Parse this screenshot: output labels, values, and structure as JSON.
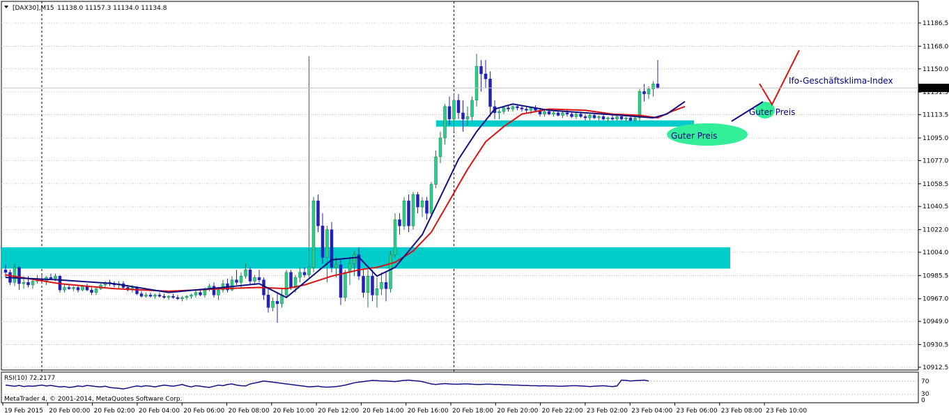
{
  "header": {
    "symbol": "[DAX30],M15",
    "ohlc": "11138.0 11157.3 11134.0 11134.8",
    "dropdown_icon": "triangle-down-icon"
  },
  "current_price": "11134.8",
  "rsi_panel": {
    "label": "RSI(10) 72.2177",
    "levels": [
      "70",
      "30",
      "0"
    ]
  },
  "footer": {
    "copyright": "MetaTrader 4, © 2001-2014, MetaQuotes Software Corp."
  },
  "annotations": {
    "ifo": "Ifo-Geschäftsklima-Index",
    "guter_preis_1": "Guter Preis",
    "guter_preis_2": "Guter Preis"
  },
  "colors": {
    "bull": "#2ecc8a",
    "bear": "#2222bb",
    "ma_fast": "#101080",
    "ma_slow": "#dd1010",
    "zone": "#00cccc",
    "highlight": "#33ee99",
    "rsi": "#101080",
    "arrow": "#dd1010"
  },
  "chart_data": {
    "type": "candlestick",
    "symbol": "DAX30",
    "timeframe": "M15",
    "y_ticks": [
      11186.5,
      11168.0,
      11150.0,
      11131.5,
      11113.5,
      11095.0,
      11077.0,
      11058.5,
      11040.5,
      11022.0,
      11004.0,
      10985.5,
      10967.0,
      10949.0,
      10930.5,
      10912.5
    ],
    "y_tick_labels": [
      "11186.5",
      "11168.0",
      "11150.0",
      "11131.5",
      "11113.5",
      "11095.0",
      "11077.0",
      "11058.5",
      "11040.5",
      "11022.0",
      "11004.0",
      "10985.5",
      "10967.0",
      "10949.0",
      "10930.5",
      "10912.5"
    ],
    "ylim": [
      10910,
      11204
    ],
    "x_labels": [
      "19 Feb 2015",
      "20 Feb 00:00",
      "20 Feb 02:00",
      "20 Feb 04:00",
      "20 Feb 06:00",
      "20 Feb 08:00",
      "20 Feb 10:00",
      "20 Feb 12:00",
      "20 Feb 14:00",
      "20 Feb 16:00",
      "20 Feb 18:00",
      "20 Feb 20:00",
      "20 Feb 22:00",
      "23 Feb 02:00",
      "23 Feb 04:00",
      "23 Feb 06:00",
      "23 Feb 08:00",
      "23 Feb 10:00"
    ],
    "day_separator_bars": [
      8,
      99
    ],
    "zones": [
      {
        "low": 10991,
        "high": 11008,
        "from_bar": 0,
        "to_bar": 160
      },
      {
        "low": 11104,
        "high": 11109,
        "from_bar": 96,
        "to_bar": 152
      }
    ],
    "candles": [
      [
        10990,
        10994,
        10984,
        10988
      ],
      [
        10988,
        10990,
        10978,
        10980
      ],
      [
        10980,
        10995,
        10977,
        10992
      ],
      [
        10992,
        10993,
        10974,
        10979
      ],
      [
        10979,
        10985,
        10975,
        10980
      ],
      [
        10980,
        10985,
        10976,
        10978
      ],
      [
        10978,
        10983,
        10975,
        10981
      ],
      [
        10981,
        10986,
        10979,
        10983
      ],
      [
        10983,
        10986,
        10980,
        10981
      ],
      [
        10981,
        10985,
        10978,
        10984
      ],
      [
        10984,
        10987,
        10982,
        10983
      ],
      [
        10983,
        10987,
        10981,
        10985
      ],
      [
        10985,
        10986,
        10972,
        10974
      ],
      [
        10974,
        10978,
        10972,
        10976
      ],
      [
        10976,
        10978,
        10974,
        10975
      ],
      [
        10975,
        10977,
        10973,
        10976
      ],
      [
        10976,
        10978,
        10972,
        10974
      ],
      [
        10974,
        10978,
        10973,
        10977
      ],
      [
        10977,
        10979,
        10973,
        10974
      ],
      [
        10974,
        10976,
        10970,
        10972
      ],
      [
        10972,
        10976,
        10970,
        10975
      ],
      [
        10975,
        10979,
        10974,
        10978
      ],
      [
        10978,
        10981,
        10976,
        10980
      ],
      [
        10980,
        10982,
        10977,
        10979
      ],
      [
        10979,
        10981,
        10976,
        10978
      ],
      [
        10978,
        10981,
        10975,
        10979
      ],
      [
        10979,
        10981,
        10975,
        10976
      ],
      [
        10976,
        10978,
        10973,
        10974
      ],
      [
        10974,
        10978,
        10972,
        10976
      ],
      [
        10976,
        10977,
        10970,
        10971
      ],
      [
        10971,
        10973,
        10968,
        10969
      ],
      [
        10969,
        10972,
        10968,
        10970
      ],
      [
        10970,
        10972,
        10968,
        10969
      ],
      [
        10969,
        10971,
        10967,
        10970
      ],
      [
        10970,
        10972,
        10968,
        10969
      ],
      [
        10969,
        10971,
        10967,
        10968
      ],
      [
        10968,
        10970,
        10966,
        10969
      ],
      [
        10969,
        10971,
        10967,
        10968
      ],
      [
        10968,
        10970,
        10966,
        10967
      ],
      [
        10967,
        10969,
        10965,
        10968
      ],
      [
        10968,
        10970,
        10966,
        10969
      ],
      [
        10969,
        10971,
        10967,
        10970
      ],
      [
        10970,
        10974,
        10968,
        10972
      ],
      [
        10972,
        10975,
        10969,
        10970
      ],
      [
        10970,
        10976,
        10968,
        10975
      ],
      [
        10975,
        10979,
        10973,
        10977
      ],
      [
        10977,
        10980,
        10968,
        10970
      ],
      [
        10970,
        10976,
        10966,
        10974
      ],
      [
        10974,
        10982,
        10972,
        10979
      ],
      [
        10979,
        10983,
        10972,
        10974
      ],
      [
        10974,
        10985,
        10973,
        10982
      ],
      [
        10982,
        10990,
        10978,
        10980
      ],
      [
        10980,
        10988,
        10976,
        10985
      ],
      [
        10985,
        10995,
        10983,
        10990
      ],
      [
        10990,
        10992,
        10978,
        10981
      ],
      [
        10981,
        10986,
        10978,
        10984
      ],
      [
        10984,
        10990,
        10980,
        10982
      ],
      [
        10982,
        10984,
        10966,
        10970
      ],
      [
        10970,
        10975,
        10956,
        10960
      ],
      [
        10960,
        10968,
        10957,
        10965
      ],
      [
        10965,
        10972,
        10948,
        10963
      ],
      [
        10963,
        10975,
        10960,
        10970
      ],
      [
        10970,
        10990,
        10968,
        10988
      ],
      [
        10988,
        10990,
        10974,
        10976
      ],
      [
        10976,
        10986,
        10972,
        10984
      ],
      [
        10984,
        10992,
        10980,
        10988
      ],
      [
        10988,
        10992,
        10984,
        10986
      ],
      [
        10986,
        11160,
        10984,
        10992
      ],
      [
        10992,
        11048,
        10988,
        11045
      ],
      [
        11045,
        11050,
        11020,
        11025
      ],
      [
        11025,
        11035,
        10995,
        11000
      ],
      [
        11000,
        11025,
        10980,
        11022
      ],
      [
        11022,
        11028,
        10988,
        10992
      ],
      [
        10992,
        11000,
        10984,
        10994
      ],
      [
        10994,
        10998,
        10962,
        10968
      ],
      [
        10968,
        10990,
        10965,
        10988
      ],
      [
        10988,
        11000,
        10978,
        10995
      ],
      [
        10995,
        11005,
        10985,
        11002
      ],
      [
        11002,
        11008,
        10982,
        10985
      ],
      [
        10985,
        10990,
        10968,
        10972
      ],
      [
        10972,
        10990,
        10960,
        10985
      ],
      [
        10985,
        10990,
        10965,
        10970
      ],
      [
        10970,
        10984,
        10960,
        10975
      ],
      [
        10975,
        10988,
        10970,
        10980
      ],
      [
        10980,
        10988,
        10965,
        10975
      ],
      [
        10975,
        11005,
        10972,
        11002
      ],
      [
        11002,
        11035,
        11000,
        11030
      ],
      [
        11030,
        11035,
        11018,
        11025
      ],
      [
        11025,
        11048,
        11022,
        11045
      ],
      [
        11045,
        11050,
        11020,
        11025
      ],
      [
        11025,
        11052,
        11022,
        11050
      ],
      [
        11050,
        11052,
        11035,
        11040
      ],
      [
        11040,
        11048,
        11032,
        11045
      ],
      [
        11045,
        11048,
        11030,
        11035
      ],
      [
        11035,
        11060,
        11032,
        11058
      ],
      [
        11058,
        11085,
        11055,
        11080
      ],
      [
        11080,
        11100,
        11075,
        11095
      ],
      [
        11095,
        11122,
        11090,
        11120
      ],
      [
        11120,
        11128,
        11105,
        11110
      ],
      [
        11110,
        11130,
        11100,
        11125
      ],
      [
        11125,
        11130,
        11110,
        11115
      ],
      [
        11115,
        11125,
        11100,
        11110
      ],
      [
        11110,
        11120,
        11105,
        11112
      ],
      [
        11112,
        11128,
        11108,
        11125
      ],
      [
        11125,
        11162,
        11120,
        11152
      ],
      [
        11152,
        11157,
        11132,
        11146
      ],
      [
        11146,
        11157,
        11135,
        11142
      ],
      [
        11142,
        11148,
        11112,
        11120
      ],
      [
        11120,
        11125,
        11110,
        11115
      ],
      [
        11115,
        11118,
        11110,
        11116
      ],
      [
        11116,
        11120,
        11114,
        11119
      ],
      [
        11119,
        11121,
        11116,
        11118
      ],
      [
        11118,
        11121,
        11116,
        11120
      ],
      [
        11120,
        11122,
        11117,
        11119
      ],
      [
        11119,
        11121,
        11116,
        11118
      ],
      [
        11118,
        11120,
        11115,
        11117
      ],
      [
        11117,
        11120,
        11114,
        11119
      ],
      [
        11119,
        11121,
        11116,
        11117
      ],
      [
        11117,
        11119,
        11112,
        11114
      ],
      [
        11114,
        11117,
        11112,
        11116
      ],
      [
        11116,
        11118,
        11113,
        11114
      ],
      [
        11114,
        11117,
        11112,
        11115
      ],
      [
        11115,
        11117,
        11112,
        11113
      ],
      [
        11113,
        11116,
        11111,
        11115
      ],
      [
        11115,
        11117,
        11112,
        11114
      ],
      [
        11114,
        11116,
        11111,
        11112
      ],
      [
        11112,
        11115,
        11110,
        11114
      ],
      [
        11114,
        11116,
        11111,
        11112
      ],
      [
        11112,
        11114,
        11109,
        11111
      ],
      [
        11111,
        11114,
        11109,
        11113
      ],
      [
        11113,
        11115,
        11110,
        11111
      ],
      [
        11111,
        11113,
        11109,
        11112
      ],
      [
        11112,
        11114,
        11109,
        11110
      ],
      [
        11110,
        11112,
        11108,
        11111
      ],
      [
        11111,
        11113,
        11109,
        11110
      ],
      [
        11110,
        11113,
        11108,
        11112
      ],
      [
        11112,
        11114,
        11109,
        11110
      ],
      [
        11110,
        11112,
        11108,
        11111
      ],
      [
        11111,
        11113,
        11108,
        11109
      ],
      [
        11109,
        11112,
        11107,
        11111
      ],
      [
        11111,
        11134,
        11108,
        11132
      ],
      [
        11132,
        11138,
        11124,
        11130
      ],
      [
        11130,
        11136,
        11126,
        11134
      ],
      [
        11134,
        11140,
        11128,
        11138
      ],
      [
        11138,
        11157,
        11134,
        11134.8
      ]
    ],
    "ma_fast": [
      [
        0,
        10984
      ],
      [
        12,
        10982
      ],
      [
        24,
        10979
      ],
      [
        36,
        10972
      ],
      [
        48,
        10976
      ],
      [
        56,
        10979
      ],
      [
        62,
        10968
      ],
      [
        66,
        10980
      ],
      [
        72,
        10998
      ],
      [
        78,
        11000
      ],
      [
        82,
        10985
      ],
      [
        86,
        10992
      ],
      [
        92,
        11018
      ],
      [
        96,
        11048
      ],
      [
        100,
        11078
      ],
      [
        104,
        11100
      ],
      [
        108,
        11118
      ],
      [
        112,
        11122
      ],
      [
        120,
        11117
      ],
      [
        128,
        11115
      ],
      [
        136,
        11113
      ],
      [
        143,
        11111
      ],
      [
        146,
        11114
      ],
      [
        150,
        11124
      ]
    ],
    "ma_slow": [
      [
        0,
        10986
      ],
      [
        12,
        10979
      ],
      [
        24,
        10975
      ],
      [
        36,
        10973
      ],
      [
        48,
        10975
      ],
      [
        56,
        10976
      ],
      [
        62,
        10975
      ],
      [
        66,
        10978
      ],
      [
        72,
        10985
      ],
      [
        78,
        10990
      ],
      [
        82,
        10992
      ],
      [
        86,
        10996
      ],
      [
        90,
        11005
      ],
      [
        94,
        11020
      ],
      [
        98,
        11045
      ],
      [
        102,
        11070
      ],
      [
        106,
        11092
      ],
      [
        110,
        11104
      ],
      [
        114,
        11114
      ],
      [
        120,
        11118
      ],
      [
        128,
        11117
      ],
      [
        134,
        11114
      ],
      [
        140,
        11113
      ],
      [
        144,
        11111
      ],
      [
        147,
        11116
      ],
      [
        150,
        11120
      ]
    ],
    "rsi": {
      "levels": [
        70,
        30
      ],
      "values": [
        58,
        56,
        54,
        57,
        53,
        55,
        54,
        56,
        58,
        55,
        57,
        54,
        52,
        53,
        50,
        52,
        55,
        53,
        57,
        55,
        53,
        52,
        54,
        50,
        48,
        47,
        45,
        48,
        52,
        55,
        53,
        56,
        54,
        52,
        55,
        58,
        56,
        54,
        57,
        60,
        55,
        52,
        56,
        54,
        52,
        50,
        54,
        58,
        56,
        60,
        62,
        58,
        56,
        55,
        62,
        65,
        68,
        72,
        70,
        68,
        66,
        64,
        62,
        60,
        58,
        56,
        54,
        52,
        53,
        54,
        52,
        51,
        52,
        53,
        55,
        58,
        62,
        66,
        68,
        70,
        72,
        74,
        73,
        72,
        72,
        71,
        70,
        72,
        74,
        75,
        73,
        72,
        70,
        66,
        62,
        60,
        62,
        63,
        62,
        61,
        61,
        62,
        62,
        61,
        60,
        60,
        61,
        61,
        60,
        60,
        59,
        59,
        58,
        58,
        57,
        57,
        56,
        56,
        55,
        56,
        55,
        55,
        54,
        54,
        55,
        56,
        56,
        55,
        54,
        53,
        54,
        55,
        56,
        54,
        53,
        55,
        75,
        74,
        72,
        73,
        74,
        75,
        72
      ]
    }
  }
}
